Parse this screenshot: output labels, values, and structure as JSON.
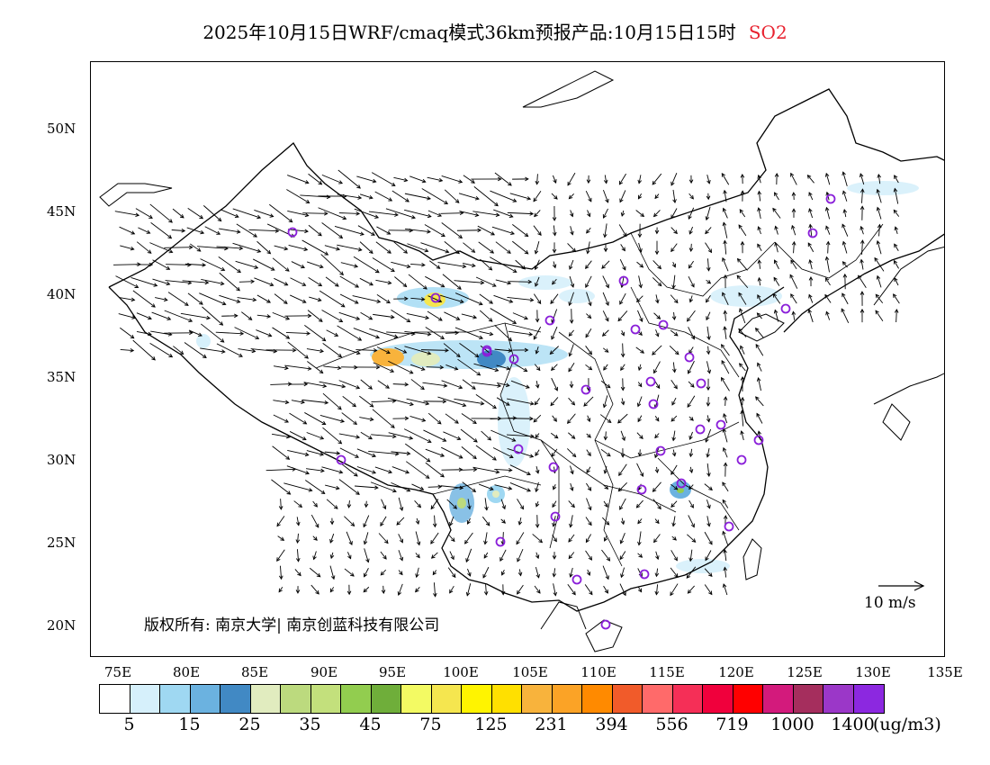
{
  "title": {
    "text": "2025年10月15日WRF/cmaq模式36km预报产品:10月15日15时",
    "pollutant": "SO2",
    "pollutant_color": "#e8212e"
  },
  "axes": {
    "lat_labels": [
      "50N",
      "45N",
      "40N",
      "35N",
      "30N",
      "25N",
      "20N"
    ],
    "lon_labels": [
      "75E",
      "80E",
      "85E",
      "90E",
      "95E",
      "100E",
      "105E",
      "110E",
      "115E",
      "120E",
      "125E",
      "130E",
      "135E"
    ]
  },
  "copyright": "版权所有: 南京大学| 南京创蓝科技有限公司",
  "wind_reference": "10 m/s",
  "legend": {
    "colors": [
      "#ffffff",
      "#d6f0fb",
      "#9fd8f2",
      "#6bb2e0",
      "#4189c4",
      "#e1ecbf",
      "#bcda7e",
      "#c3e07c",
      "#92cd4f",
      "#6fae3a",
      "#f3fa63",
      "#f5e64f",
      "#fff400",
      "#ffe000",
      "#f8b33c",
      "#fba326",
      "#ff8a00",
      "#f15b2a",
      "#ff6a6a",
      "#f52f57",
      "#f0003c",
      "#ff0000",
      "#d31a7c",
      "#a52e5d",
      "#9b37c8",
      "#8c28e0"
    ],
    "tick_labels": [
      "5",
      "15",
      "25",
      "35",
      "45",
      "75",
      "125",
      "231",
      "394",
      "556",
      "719",
      "1000",
      "1400"
    ],
    "unit": "(ug/m3)"
  },
  "map": {
    "circle_color": "#8a1fd9",
    "station_count_note": "",
    "wind_arrow_color": "#000000"
  }
}
